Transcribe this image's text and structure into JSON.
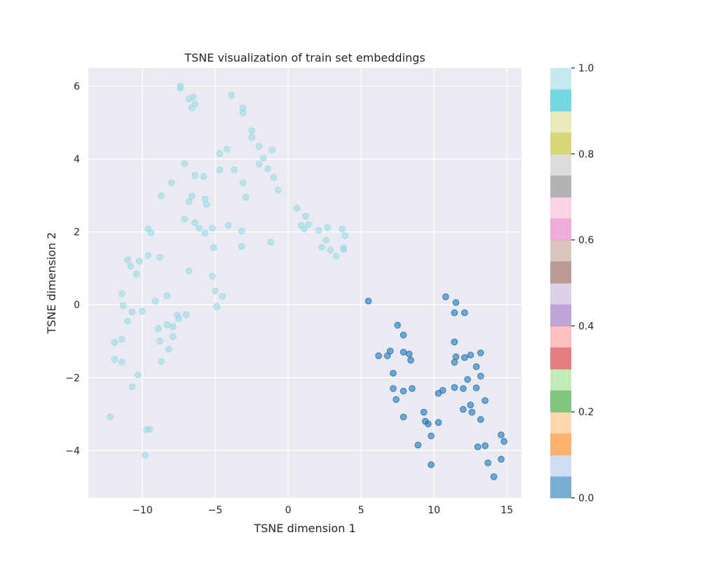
{
  "chart_data": {
    "type": "scatter",
    "title": "TSNE visualization of train set embeddings",
    "xlabel": "TSNE dimension 1",
    "ylabel": "TSNE dimension 2",
    "xlim": [
      -13.7,
      16
    ],
    "ylim": [
      -5.3,
      6.5
    ],
    "xticks": [
      -10,
      -5,
      0,
      5,
      10,
      15
    ],
    "xtick_labels": [
      "−10",
      "−5",
      "0",
      "5",
      "10",
      "15"
    ],
    "yticks": [
      -4,
      -2,
      0,
      2,
      4,
      6
    ],
    "ytick_labels": [
      "−4",
      "−2",
      "0",
      "2",
      "4",
      "6"
    ],
    "grid": true,
    "background": "#eaeaf2",
    "colorbar": {
      "colormap": "tab20",
      "range": [
        0,
        1
      ],
      "ticks": [
        0.0,
        0.2,
        0.4,
        0.6,
        0.8,
        1.0
      ],
      "tick_labels": [
        "0.0",
        "0.2",
        "0.4",
        "0.6",
        "0.8",
        "1.0"
      ],
      "colors": [
        "#1f77b4",
        "#aec7e8",
        "#ff7f0e",
        "#ffbb78",
        "#2ca02c",
        "#98df8a",
        "#d62728",
        "#ff9896",
        "#9467bd",
        "#c5b0d5",
        "#8c564b",
        "#c49c94",
        "#e377c2",
        "#f7b6d2",
        "#7f7f7f",
        "#c7c7c7",
        "#bcbd22",
        "#dbdb8d",
        "#17becf",
        "#9edae5"
      ]
    },
    "series": [
      {
        "value": 1.0,
        "color": "#9edae5",
        "points": [
          [
            -7.4,
            6.0
          ],
          [
            -7.4,
            5.95
          ],
          [
            -6.5,
            5.7
          ],
          [
            -6.8,
            5.65
          ],
          [
            -6.4,
            5.5
          ],
          [
            -6.6,
            5.4
          ],
          [
            -3.9,
            5.75
          ],
          [
            -3.1,
            5.4
          ],
          [
            -3.1,
            5.27
          ],
          [
            -2.5,
            4.78
          ],
          [
            -2.5,
            4.6
          ],
          [
            -2.0,
            4.35
          ],
          [
            -1.1,
            4.25
          ],
          [
            -4.2,
            4.27
          ],
          [
            -4.7,
            4.15
          ],
          [
            -1.7,
            4.02
          ],
          [
            -2.0,
            3.86
          ],
          [
            -1.4,
            3.73
          ],
          [
            -7.1,
            3.87
          ],
          [
            -4.7,
            3.7
          ],
          [
            -3.7,
            3.7
          ],
          [
            -6.4,
            3.55
          ],
          [
            -5.8,
            3.52
          ],
          [
            -1.0,
            3.5
          ],
          [
            -8.0,
            3.35
          ],
          [
            -3.1,
            3.35
          ],
          [
            -0.7,
            3.15
          ],
          [
            -8.7,
            2.99
          ],
          [
            -6.6,
            2.98
          ],
          [
            -5.7,
            2.9
          ],
          [
            -2.9,
            2.95
          ],
          [
            -6.8,
            2.83
          ],
          [
            -5.6,
            2.75
          ],
          [
            -7.1,
            2.35
          ],
          [
            -6.4,
            2.25
          ],
          [
            -6.1,
            2.1
          ],
          [
            -5.2,
            2.1
          ],
          [
            -4.1,
            2.18
          ],
          [
            -5.7,
            1.97
          ],
          [
            -9.6,
            2.08
          ],
          [
            -9.4,
            1.98
          ],
          [
            -3.2,
            2.02
          ],
          [
            -1.2,
            1.72
          ],
          [
            -5.1,
            1.57
          ],
          [
            -3.2,
            1.6
          ],
          [
            -9.6,
            1.35
          ],
          [
            -8.8,
            1.3
          ],
          [
            -11.0,
            1.23
          ],
          [
            -10.2,
            1.2
          ],
          [
            -10.8,
            1.06
          ],
          [
            -6.8,
            0.93
          ],
          [
            -10.4,
            0.84
          ],
          [
            -5.2,
            0.78
          ],
          [
            -11.4,
            0.3
          ],
          [
            -8.3,
            0.25
          ],
          [
            -5.0,
            0.38
          ],
          [
            -4.5,
            0.23
          ],
          [
            -9.1,
            0.1
          ],
          [
            -4.9,
            -0.05
          ],
          [
            -11.3,
            -0.02
          ],
          [
            -10.7,
            -0.2
          ],
          [
            -10.0,
            -0.18
          ],
          [
            -7.6,
            -0.28
          ],
          [
            -7.0,
            -0.27
          ],
          [
            -7.5,
            -0.38
          ],
          [
            -11.0,
            -0.45
          ],
          [
            -8.3,
            -0.55
          ],
          [
            -7.9,
            -0.6
          ],
          [
            -8.9,
            -0.65
          ],
          [
            -7.9,
            -0.87
          ],
          [
            -11.4,
            -0.95
          ],
          [
            -8.8,
            -1.0
          ],
          [
            -11.9,
            -1.03
          ],
          [
            -8.2,
            -1.22
          ],
          [
            -11.9,
            -1.5
          ],
          [
            -11.4,
            -1.57
          ],
          [
            -8.7,
            -1.56
          ],
          [
            -10.3,
            -1.93
          ],
          [
            -10.7,
            -2.25
          ],
          [
            -12.2,
            -3.08
          ],
          [
            -9.7,
            -3.43
          ],
          [
            -9.5,
            -3.42
          ],
          [
            -9.8,
            -4.13
          ],
          [
            0.6,
            2.65
          ],
          [
            0.9,
            2.18
          ],
          [
            1.2,
            2.43
          ],
          [
            1.4,
            2.2
          ],
          [
            1.1,
            2.08
          ],
          [
            2.1,
            2.04
          ],
          [
            2.7,
            2.12
          ],
          [
            3.7,
            2.08
          ],
          [
            3.9,
            1.9
          ],
          [
            2.6,
            1.77
          ],
          [
            2.3,
            1.58
          ],
          [
            2.9,
            1.5
          ],
          [
            3.8,
            1.56
          ],
          [
            3.8,
            1.52
          ],
          [
            3.3,
            1.33
          ]
        ]
      },
      {
        "value": 0.0,
        "color": "#1f77b4",
        "points": [
          [
            5.5,
            0.1
          ],
          [
            10.8,
            0.22
          ],
          [
            11.5,
            0.06
          ],
          [
            11.4,
            -0.22
          ],
          [
            12.1,
            -0.22
          ],
          [
            7.5,
            -0.56
          ],
          [
            7.9,
            -0.83
          ],
          [
            11.4,
            -1.02
          ],
          [
            7.0,
            -1.27
          ],
          [
            7.9,
            -1.3
          ],
          [
            8.3,
            -1.35
          ],
          [
            13.2,
            -1.32
          ],
          [
            12.5,
            -1.38
          ],
          [
            6.2,
            -1.4
          ],
          [
            6.8,
            -1.4
          ],
          [
            11.5,
            -1.43
          ],
          [
            12.1,
            -1.45
          ],
          [
            8.4,
            -1.52
          ],
          [
            11.4,
            -1.58
          ],
          [
            12.9,
            -1.7
          ],
          [
            7.2,
            -1.88
          ],
          [
            13.2,
            -1.96
          ],
          [
            12.3,
            -2.05
          ],
          [
            7.2,
            -2.3
          ],
          [
            8.5,
            -2.3
          ],
          [
            11.4,
            -2.27
          ],
          [
            12.9,
            -2.28
          ],
          [
            10.6,
            -2.35
          ],
          [
            12.0,
            -2.3
          ],
          [
            7.9,
            -2.37
          ],
          [
            10.3,
            -2.43
          ],
          [
            7.4,
            -2.6
          ],
          [
            13.5,
            -2.63
          ],
          [
            12.5,
            -2.75
          ],
          [
            12.0,
            -2.87
          ],
          [
            9.3,
            -2.95
          ],
          [
            12.6,
            -2.95
          ],
          [
            7.9,
            -3.08
          ],
          [
            13.2,
            -3.15
          ],
          [
            9.4,
            -3.2
          ],
          [
            9.6,
            -3.27
          ],
          [
            10.3,
            -3.23
          ],
          [
            14.6,
            -3.57
          ],
          [
            9.8,
            -3.6
          ],
          [
            14.8,
            -3.75
          ],
          [
            8.9,
            -3.85
          ],
          [
            13.5,
            -3.87
          ],
          [
            13.0,
            -3.9
          ],
          [
            14.6,
            -4.24
          ],
          [
            9.8,
            -4.39
          ],
          [
            13.7,
            -4.34
          ],
          [
            14.1,
            -4.72
          ]
        ]
      }
    ]
  }
}
